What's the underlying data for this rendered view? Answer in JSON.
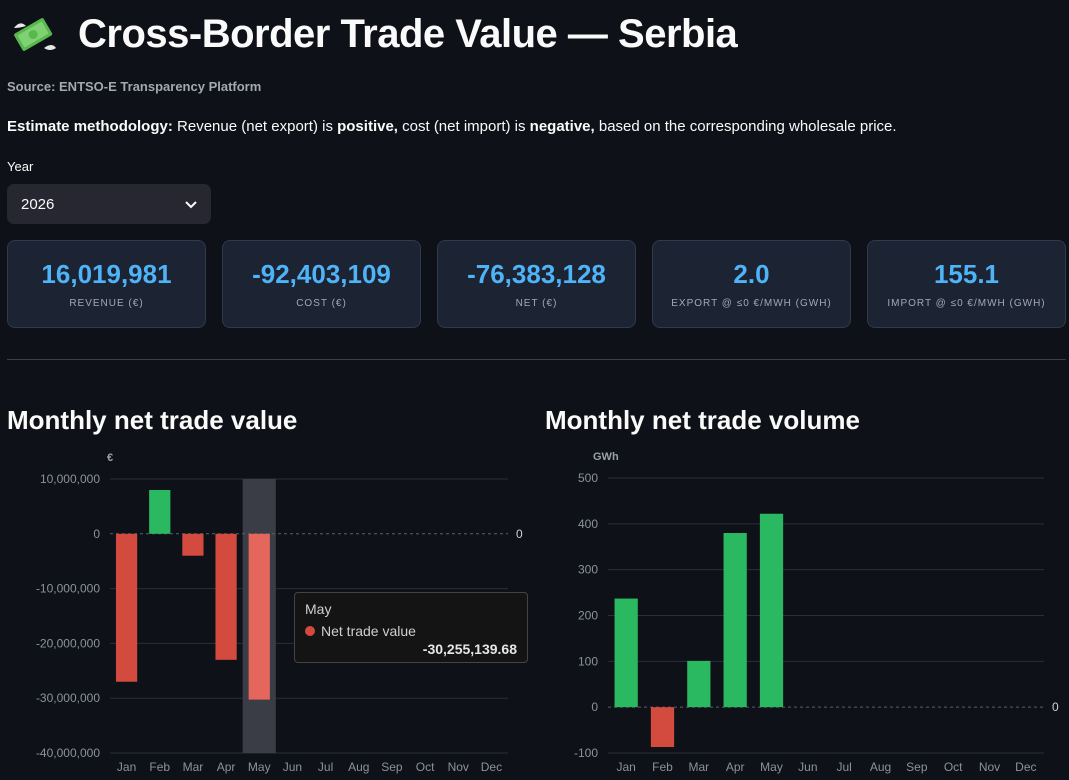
{
  "header": {
    "title": "Cross-Border Trade Value — Serbia",
    "logo_icon": "money-with-wings-icon"
  },
  "source_text": "Source: ENTSO-E Transparency Platform",
  "methodology": {
    "lead": "Estimate methodology:",
    "part1": " Revenue (net export) is ",
    "positive": "positive,",
    "part2": " cost (net import) is ",
    "negative": "negative,",
    "part3": " based on the corresponding wholesale price."
  },
  "year_select": {
    "label": "Year",
    "value": "2026",
    "icon": "chevron-down-icon"
  },
  "metrics": [
    {
      "value": "16,019,981",
      "label": "Revenue (€)"
    },
    {
      "value": "-92,403,109",
      "label": "Cost (€)"
    },
    {
      "value": "-76,383,128",
      "label": "Net (€)"
    },
    {
      "value": "2.0",
      "label": "Export @ ≤0 €/MWh (GWh)"
    },
    {
      "value": "155.1",
      "label": "Import @ ≤0 €/MWh (GWh)"
    }
  ],
  "colors": {
    "positive": "#2ab861",
    "negative": "#d24b3e",
    "highlight": "#e5665c",
    "accent": "#4fb3f7"
  },
  "charts": {
    "value_title": "Monthly net trade value",
    "volume_title": "Monthly net trade volume"
  },
  "chart_data": [
    {
      "type": "bar",
      "title": "Monthly net trade value",
      "ylabel": "€",
      "categories": [
        "Jan",
        "Feb",
        "Mar",
        "Apr",
        "May",
        "Jun",
        "Jul",
        "Aug",
        "Sep",
        "Oct",
        "Nov",
        "Dec"
      ],
      "values": [
        -27000000,
        8000000,
        -4000000,
        -23000000,
        -30255139.68,
        null,
        null,
        null,
        null,
        null,
        null,
        null
      ],
      "ylim": [
        -40000000,
        10000000
      ],
      "yticks": [
        10000000,
        0,
        -10000000,
        -20000000,
        -30000000,
        -40000000
      ],
      "ytick_labels": [
        "10,000,000",
        "0",
        "-10,000,000",
        "-20,000,000",
        "-30,000,000",
        "-40,000,000"
      ],
      "zero_label": "0",
      "grid": true,
      "highlighted_category": "May",
      "tooltip": {
        "title": "May",
        "series": "Net trade value",
        "value": "-30,255,139.68"
      }
    },
    {
      "type": "bar",
      "title": "Monthly net trade volume",
      "ylabel": "GWh",
      "categories": [
        "Jan",
        "Feb",
        "Mar",
        "Apr",
        "May",
        "Jun",
        "Jul",
        "Aug",
        "Sep",
        "Oct",
        "Nov",
        "Dec"
      ],
      "values": [
        237,
        -87,
        101,
        380,
        422,
        null,
        null,
        null,
        null,
        null,
        null,
        null
      ],
      "ylim": [
        -100,
        500
      ],
      "yticks": [
        500,
        400,
        300,
        200,
        100,
        0,
        -100
      ],
      "ytick_labels": [
        "500",
        "400",
        "300",
        "200",
        "100",
        "0",
        "-100"
      ],
      "zero_label": "0",
      "grid": true
    }
  ]
}
